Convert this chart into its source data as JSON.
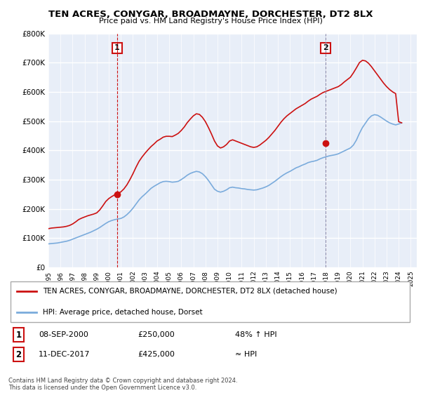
{
  "title": "TEN ACRES, CONYGAR, BROADMAYNE, DORCHESTER, DT2 8LX",
  "subtitle": "Price paid vs. HM Land Registry's House Price Index (HPI)",
  "background_color": "#ffffff",
  "plot_background": "#e8eef8",
  "grid_color": "#ffffff",
  "ylim": [
    0,
    800000
  ],
  "yticks": [
    0,
    100000,
    200000,
    300000,
    400000,
    500000,
    600000,
    700000,
    800000
  ],
  "xlim_start": 1995.0,
  "xlim_end": 2025.5,
  "sale1_x": 2000.69,
  "sale1_y": 250000,
  "sale2_x": 2017.94,
  "sale2_y": 425000,
  "hpi_color": "#7aabdc",
  "price_color": "#cc1111",
  "vline2_color": "#8888aa",
  "legend_label_price": "TEN ACRES, CONYGAR, BROADMAYNE, DORCHESTER, DT2 8LX (detached house)",
  "legend_label_hpi": "HPI: Average price, detached house, Dorset",
  "annotation1_date": "08-SEP-2000",
  "annotation1_price": "£250,000",
  "annotation1_hpi": "48% ↑ HPI",
  "annotation2_date": "11-DEC-2017",
  "annotation2_price": "£425,000",
  "annotation2_hpi": "≈ HPI",
  "footer": "Contains HM Land Registry data © Crown copyright and database right 2024.\nThis data is licensed under the Open Government Licence v3.0.",
  "hpi_data_x": [
    1995.0,
    1995.25,
    1995.5,
    1995.75,
    1996.0,
    1996.25,
    1996.5,
    1996.75,
    1997.0,
    1997.25,
    1997.5,
    1997.75,
    1998.0,
    1998.25,
    1998.5,
    1998.75,
    1999.0,
    1999.25,
    1999.5,
    1999.75,
    2000.0,
    2000.25,
    2000.5,
    2000.75,
    2001.0,
    2001.25,
    2001.5,
    2001.75,
    2002.0,
    2002.25,
    2002.5,
    2002.75,
    2003.0,
    2003.25,
    2003.5,
    2003.75,
    2004.0,
    2004.25,
    2004.5,
    2004.75,
    2005.0,
    2005.25,
    2005.5,
    2005.75,
    2006.0,
    2006.25,
    2006.5,
    2006.75,
    2007.0,
    2007.25,
    2007.5,
    2007.75,
    2008.0,
    2008.25,
    2008.5,
    2008.75,
    2009.0,
    2009.25,
    2009.5,
    2009.75,
    2010.0,
    2010.25,
    2010.5,
    2010.75,
    2011.0,
    2011.25,
    2011.5,
    2011.75,
    2012.0,
    2012.25,
    2012.5,
    2012.75,
    2013.0,
    2013.25,
    2013.5,
    2013.75,
    2014.0,
    2014.25,
    2014.5,
    2014.75,
    2015.0,
    2015.25,
    2015.5,
    2015.75,
    2016.0,
    2016.25,
    2016.5,
    2016.75,
    2017.0,
    2017.25,
    2017.5,
    2017.75,
    2018.0,
    2018.25,
    2018.5,
    2018.75,
    2019.0,
    2019.25,
    2019.5,
    2019.75,
    2020.0,
    2020.25,
    2020.5,
    2020.75,
    2021.0,
    2021.25,
    2021.5,
    2021.75,
    2022.0,
    2022.25,
    2022.5,
    2022.75,
    2023.0,
    2023.25,
    2023.5,
    2023.75,
    2024.0,
    2024.25
  ],
  "hpi_data_y": [
    80000,
    81000,
    82000,
    83000,
    85000,
    87000,
    89000,
    92000,
    96000,
    100000,
    104000,
    108000,
    112000,
    116000,
    120000,
    125000,
    130000,
    136000,
    143000,
    150000,
    156000,
    160000,
    163000,
    165000,
    167000,
    172000,
    180000,
    190000,
    202000,
    216000,
    230000,
    241000,
    250000,
    260000,
    270000,
    277000,
    283000,
    289000,
    293000,
    294000,
    293000,
    291000,
    292000,
    294000,
    300000,
    307000,
    315000,
    321000,
    325000,
    328000,
    326000,
    320000,
    310000,
    297000,
    282000,
    267000,
    260000,
    257000,
    260000,
    265000,
    272000,
    274000,
    272000,
    271000,
    269000,
    268000,
    266000,
    265000,
    264000,
    265000,
    268000,
    271000,
    275000,
    280000,
    287000,
    294000,
    302000,
    310000,
    317000,
    323000,
    328000,
    334000,
    340000,
    344000,
    349000,
    353000,
    358000,
    361000,
    363000,
    366000,
    371000,
    375000,
    378000,
    381000,
    383000,
    385000,
    388000,
    393000,
    398000,
    403000,
    408000,
    418000,
    435000,
    458000,
    478000,
    493000,
    508000,
    518000,
    522000,
    520000,
    514000,
    507000,
    500000,
    494000,
    490000,
    487000,
    490000,
    494000
  ],
  "price_data_x": [
    1995.0,
    1995.25,
    1995.5,
    1995.75,
    1996.0,
    1996.25,
    1996.5,
    1996.75,
    1997.0,
    1997.25,
    1997.5,
    1997.75,
    1998.0,
    1998.25,
    1998.5,
    1998.75,
    1999.0,
    1999.25,
    1999.5,
    1999.75,
    2000.0,
    2000.25,
    2000.5,
    2000.75,
    2001.0,
    2001.25,
    2001.5,
    2001.75,
    2002.0,
    2002.25,
    2002.5,
    2002.75,
    2003.0,
    2003.25,
    2003.5,
    2003.75,
    2004.0,
    2004.25,
    2004.5,
    2004.75,
    2005.0,
    2005.25,
    2005.5,
    2005.75,
    2006.0,
    2006.25,
    2006.5,
    2006.75,
    2007.0,
    2007.25,
    2007.5,
    2007.75,
    2008.0,
    2008.25,
    2008.5,
    2008.75,
    2009.0,
    2009.25,
    2009.5,
    2009.75,
    2010.0,
    2010.25,
    2010.5,
    2010.75,
    2011.0,
    2011.25,
    2011.5,
    2011.75,
    2012.0,
    2012.25,
    2012.5,
    2012.75,
    2013.0,
    2013.25,
    2013.5,
    2013.75,
    2014.0,
    2014.25,
    2014.5,
    2014.75,
    2015.0,
    2015.25,
    2015.5,
    2015.75,
    2016.0,
    2016.25,
    2016.5,
    2016.75,
    2017.0,
    2017.25,
    2017.5,
    2017.75,
    2018.0,
    2018.25,
    2018.5,
    2018.75,
    2019.0,
    2019.25,
    2019.5,
    2019.75,
    2020.0,
    2020.25,
    2020.5,
    2020.75,
    2021.0,
    2021.25,
    2021.5,
    2021.75,
    2022.0,
    2022.25,
    2022.5,
    2022.75,
    2023.0,
    2023.25,
    2023.5,
    2023.75,
    2024.0,
    2024.25
  ],
  "price_data_y": [
    132000,
    134000,
    135000,
    136000,
    137000,
    138000,
    140000,
    143000,
    148000,
    155000,
    163000,
    168000,
    172000,
    176000,
    179000,
    182000,
    186000,
    196000,
    210000,
    225000,
    235000,
    242000,
    248000,
    252000,
    258000,
    268000,
    282000,
    300000,
    320000,
    342000,
    362000,
    377000,
    390000,
    402000,
    413000,
    422000,
    432000,
    438000,
    445000,
    448000,
    448000,
    447000,
    452000,
    458000,
    468000,
    480000,
    495000,
    507000,
    518000,
    525000,
    523000,
    513000,
    498000,
    478000,
    456000,
    432000,
    415000,
    408000,
    412000,
    420000,
    432000,
    436000,
    432000,
    428000,
    424000,
    420000,
    416000,
    412000,
    410000,
    412000,
    418000,
    426000,
    434000,
    444000,
    456000,
    468000,
    482000,
    496000,
    508000,
    518000,
    526000,
    534000,
    542000,
    548000,
    554000,
    560000,
    568000,
    575000,
    580000,
    585000,
    592000,
    598000,
    602000,
    606000,
    610000,
    614000,
    618000,
    625000,
    634000,
    642000,
    650000,
    665000,
    682000,
    700000,
    708000,
    706000,
    698000,
    686000,
    672000,
    658000,
    644000,
    630000,
    618000,
    608000,
    600000,
    594000,
    498000,
    494000
  ]
}
